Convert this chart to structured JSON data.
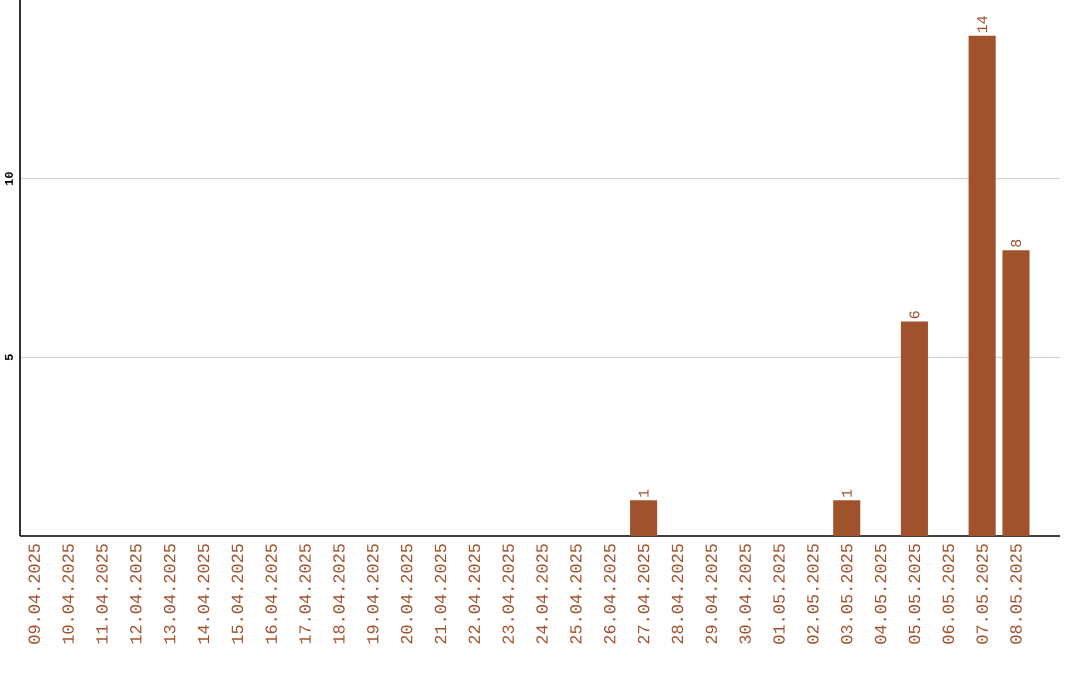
{
  "chart_data": {
    "type": "bar",
    "categories": [
      "09.04.2025",
      "10.04.2025",
      "11.04.2025",
      "12.04.2025",
      "13.04.2025",
      "14.04.2025",
      "15.04.2025",
      "16.04.2025",
      "17.04.2025",
      "18.04.2025",
      "19.04.2025",
      "20.04.2025",
      "21.04.2025",
      "22.04.2025",
      "23.04.2025",
      "24.04.2025",
      "25.04.2025",
      "26.04.2025",
      "27.04.2025",
      "28.04.2025",
      "29.04.2025",
      "30.04.2025",
      "01.05.2025",
      "02.05.2025",
      "03.05.2025",
      "04.05.2025",
      "05.05.2025",
      "06.05.2025",
      "07.05.2025",
      "08.05.2025"
    ],
    "values": [
      0,
      0,
      0,
      0,
      0,
      0,
      0,
      0,
      0,
      0,
      0,
      0,
      0,
      0,
      0,
      0,
      0,
      0,
      1,
      0,
      0,
      0,
      0,
      0,
      1,
      0,
      6,
      0,
      14,
      8
    ],
    "value_labels": [
      null,
      null,
      null,
      null,
      null,
      null,
      null,
      null,
      null,
      null,
      null,
      null,
      null,
      null,
      null,
      null,
      null,
      null,
      "1",
      null,
      null,
      null,
      null,
      null,
      "1",
      null,
      "6",
      null,
      "14",
      "8"
    ],
    "color": "#a0522d",
    "ylim": [
      0,
      15
    ],
    "yticks": [
      5,
      10
    ],
    "grid": "y"
  }
}
